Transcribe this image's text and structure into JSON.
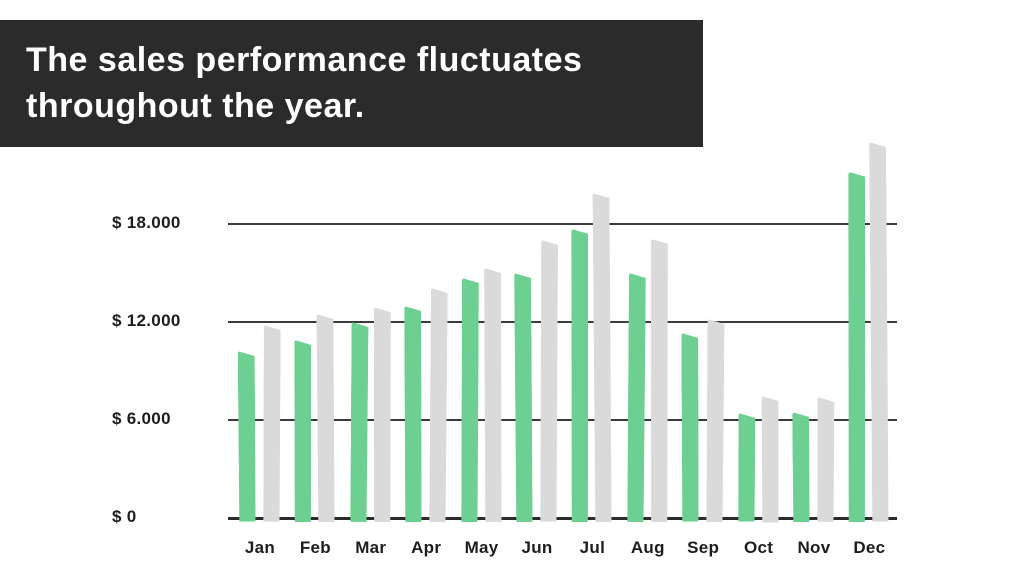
{
  "header": {
    "title_line1": "The sales performance fluctuates",
    "title_line2": "throughout the year.",
    "bg_color": "#2b2b2b",
    "text_color": "#ffffff"
  },
  "chart_data": {
    "type": "bar",
    "title": "",
    "categories": [
      "Jan",
      "Feb",
      "Mar",
      "Apr",
      "May",
      "Jun",
      "Jul",
      "Aug",
      "Sep",
      "Oct",
      "Nov",
      "Dec"
    ],
    "series": [
      {
        "name": "green",
        "color": "#6ECF93",
        "values": [
          10200,
          10900,
          12000,
          13000,
          14700,
          15000,
          17700,
          15000,
          11300,
          6400,
          6500,
          21200
        ]
      },
      {
        "name": "gray",
        "color": "#DADADA",
        "values": [
          11800,
          12500,
          12900,
          14100,
          15300,
          17000,
          19900,
          17100,
          12200,
          7500,
          7400,
          23000
        ]
      }
    ],
    "y_ticks": [
      {
        "value": 0,
        "label": "$ 0"
      },
      {
        "value": 6000,
        "label": "$ 6.000"
      },
      {
        "value": 12000,
        "label": "$ 12.000"
      },
      {
        "value": 18000,
        "label": "$ 18.000"
      }
    ],
    "ylim": [
      0,
      24000
    ],
    "grid": "horizontal",
    "legend": "none",
    "axis_color": "#3a3a3a",
    "label_color": "#1d1d1d"
  }
}
